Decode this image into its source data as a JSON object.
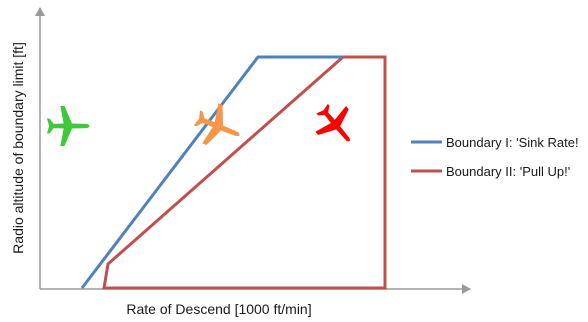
{
  "chart_data": {
    "type": "line",
    "xlabel": "Rate of Descend [1000 ft/min]",
    "ylabel": "Radio altitude of boundary limit  [ft]",
    "grid": false,
    "legend_position": "right",
    "series": [
      {
        "name": "Boundary I: 'Sink Rate!",
        "color": "#4f81bd"
      },
      {
        "name": "Boundary II: 'Pull Up!'",
        "color": "#c0504d"
      }
    ],
    "icons": [
      {
        "name": "green-airplane-icon",
        "color": "#3ec93a"
      },
      {
        "name": "orange-airplane-icon",
        "color": "#f79646"
      },
      {
        "name": "red-airplane-icon",
        "color": "#ff0000"
      }
    ]
  }
}
